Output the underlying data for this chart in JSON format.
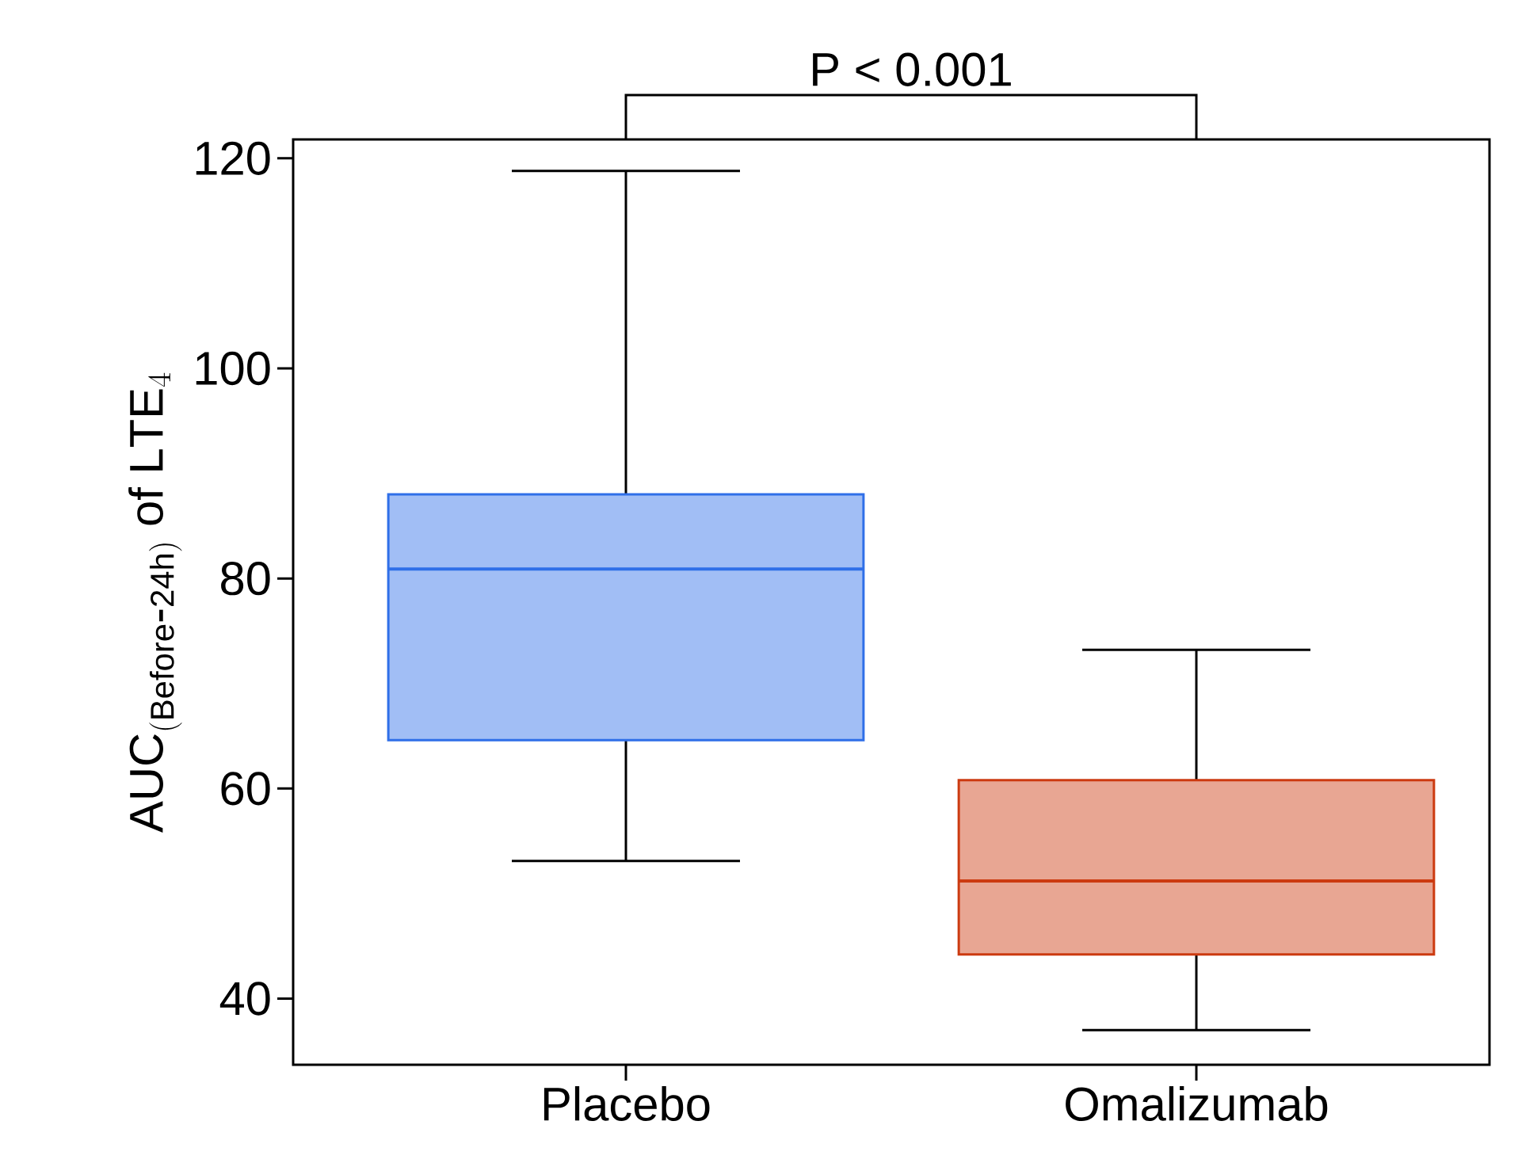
{
  "chart_data": {
    "type": "box",
    "ylabel": "\\mathrm{AUC}_{(\\mathrm{Before}\\mbox{-}\\mathrm{24h})}\\ \\mathrm{of}\\ \\mathrm{LTE}_{4}",
    "categories": [
      "Placebo",
      "Omalizumab"
    ],
    "boxes": [
      {
        "low": 53.1,
        "q1": 64.6,
        "median": 80.9,
        "q3": 88,
        "high": 118.8
      },
      {
        "low": 37,
        "q1": 44.2,
        "median": 51.2,
        "q3": 60.8,
        "high": 73.2
      }
    ],
    "colors": [
      "#2f6fe8",
      "#cc3a10"
    ],
    "ylim": [
      33.7,
      121.8
    ],
    "yticks": [
      40,
      60,
      80,
      100,
      120
    ],
    "annotations": [
      "P < 0.001"
    ],
    "grid": false
  }
}
